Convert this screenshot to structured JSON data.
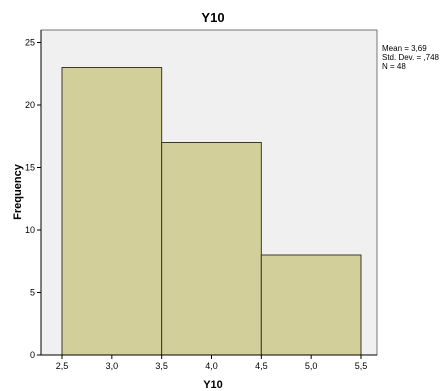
{
  "chart_data": {
    "type": "bar",
    "title": "Y10",
    "xlabel": "Y10",
    "ylabel": "Frequency",
    "bins": [
      {
        "from": 2.5,
        "to": 3.5,
        "count": 23
      },
      {
        "from": 3.5,
        "to": 4.5,
        "count": 17
      },
      {
        "from": 4.5,
        "to": 5.5,
        "count": 8
      }
    ],
    "xlim": [
      2.5,
      5.5
    ],
    "ylim": [
      0,
      26
    ],
    "x_ticks": [
      2.5,
      3.0,
      3.5,
      4.0,
      4.5,
      5.0,
      5.5
    ],
    "x_tick_labels": [
      "2,5",
      "3,0",
      "3,5",
      "4,0",
      "4,5",
      "5,0",
      "5,5"
    ],
    "y_ticks": [
      0,
      5,
      10,
      15,
      20,
      25
    ],
    "y_tick_labels": [
      "0",
      "5",
      "10",
      "15",
      "20",
      "25"
    ],
    "grid": false,
    "stats": {
      "mean": "Mean = 3,69",
      "std_dev": "Std. Dev. = ,748",
      "n": "N = 48"
    },
    "colors": {
      "bar_fill": "#d3cf9b",
      "bar_stroke": "#3a3a2a",
      "plot_bg": "#f0f0f0"
    }
  }
}
